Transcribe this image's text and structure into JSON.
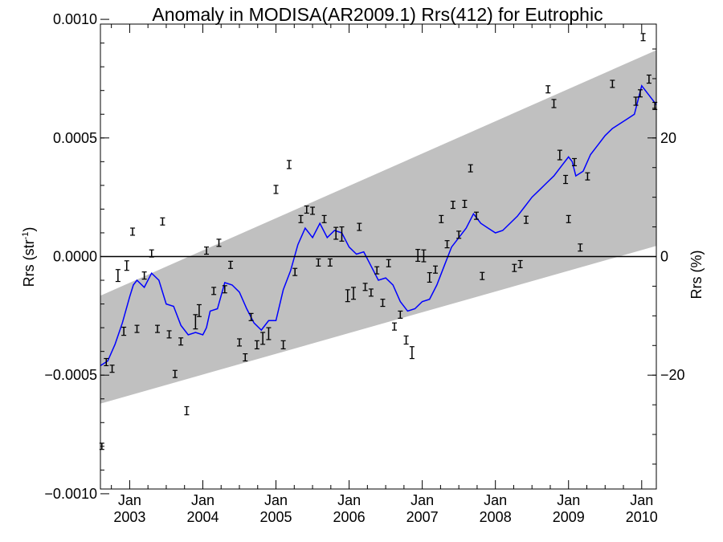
{
  "chart_data": {
    "type": "scatter",
    "title": "Anomaly in MODISA(AR2009.1) Rrs(412) for Eutrophic",
    "ylabel": "Rrs (str",
    "ylabel_sup": "-1",
    "ylabel_tail": ")",
    "y2label": "Rrs (%)",
    "xlim": [
      2002.6,
      2010.2
    ],
    "ylim": [
      -0.00098,
      0.00098
    ],
    "y2lim": [
      -39.2,
      39.2
    ],
    "grid": false,
    "zero_line": 0,
    "x_ticks": [
      {
        "x": 2003.0,
        "month": "Jan",
        "year": "2003"
      },
      {
        "x": 2004.0,
        "month": "Jan",
        "year": "2004"
      },
      {
        "x": 2005.0,
        "month": "Jan",
        "year": "2005"
      },
      {
        "x": 2006.0,
        "month": "Jan",
        "year": "2006"
      },
      {
        "x": 2007.0,
        "month": "Jan",
        "year": "2007"
      },
      {
        "x": 2008.0,
        "month": "Jan",
        "year": "2008"
      },
      {
        "x": 2009.0,
        "month": "Jan",
        "year": "2009"
      },
      {
        "x": 2010.0,
        "month": "Jan",
        "year": "2010"
      }
    ],
    "y_ticks": [
      {
        "value": 0.001,
        "label": "0.0010"
      },
      {
        "value": 0.0005,
        "label": "0.0005"
      },
      {
        "value": 0.0,
        "label": "0.0000"
      },
      {
        "value": -0.0005,
        "label": "−0.0005"
      },
      {
        "value": -0.001,
        "label": "−0.0010"
      }
    ],
    "y2_ticks": [
      {
        "value": 20,
        "label": "20"
      },
      {
        "value": 0,
        "label": "0"
      },
      {
        "value": -20,
        "label": "−20"
      }
    ],
    "confidence_band": {
      "x": [
        2002.6,
        2010.2
      ],
      "upper": [
        -0.000165,
        0.00087
      ],
      "lower": [
        -0.00062,
        4.5e-05
      ],
      "color": "#c0c0c0"
    },
    "running_mean": {
      "color": "#0000ff",
      "x": [
        2002.6,
        2002.7,
        2002.8,
        2002.9,
        2003.0,
        2003.05,
        2003.1,
        2003.2,
        2003.3,
        2003.4,
        2003.5,
        2003.6,
        2003.7,
        2003.8,
        2003.9,
        2004.0,
        2004.05,
        2004.1,
        2004.2,
        2004.3,
        2004.4,
        2004.5,
        2004.6,
        2004.7,
        2004.8,
        2004.9,
        2005.0,
        2005.1,
        2005.2,
        2005.3,
        2005.4,
        2005.5,
        2005.6,
        2005.7,
        2005.8,
        2005.9,
        2006.0,
        2006.1,
        2006.2,
        2006.3,
        2006.4,
        2006.5,
        2006.6,
        2006.7,
        2006.8,
        2006.9,
        2007.0,
        2007.1,
        2007.2,
        2007.3,
        2007.4,
        2007.5,
        2007.6,
        2007.7,
        2007.8,
        2007.9,
        2008.0,
        2008.1,
        2008.2,
        2008.3,
        2008.4,
        2008.5,
        2008.6,
        2008.7,
        2008.8,
        2008.9,
        2009.0,
        2009.05,
        2009.1,
        2009.2,
        2009.3,
        2009.4,
        2009.5,
        2009.6,
        2009.7,
        2009.8,
        2009.9,
        2010.0,
        2010.1,
        2010.2
      ],
      "y": [
        -0.00046,
        -0.00044,
        -0.00037,
        -0.00028,
        -0.00017,
        -0.00012,
        -0.0001,
        -0.00013,
        -7e-05,
        -0.0001,
        -0.0002,
        -0.00021,
        -0.00029,
        -0.00033,
        -0.00032,
        -0.00033,
        -0.0003,
        -0.00023,
        -0.00022,
        -0.00011,
        -0.00012,
        -0.00015,
        -0.00022,
        -0.00028,
        -0.00031,
        -0.00027,
        -0.00027,
        -0.00014,
        -6e-05,
        5e-05,
        0.00012,
        8e-05,
        0.00014,
        8e-05,
        0.00011,
        0.0001,
        4e-05,
        1e-05,
        2e-05,
        -4e-05,
        -0.0001,
        -9e-05,
        -0.00012,
        -0.00019,
        -0.00023,
        -0.00022,
        -0.00019,
        -0.00018,
        -0.00012,
        -4e-05,
        4e-05,
        8e-05,
        0.00012,
        0.00018,
        0.00014,
        0.00012,
        0.0001,
        0.00011,
        0.00014,
        0.00017,
        0.00021,
        0.00025,
        0.00028,
        0.00031,
        0.00034,
        0.00038,
        0.00042,
        0.0004,
        0.00034,
        0.00036,
        0.00043,
        0.00047,
        0.00051,
        0.00054,
        0.00056,
        0.00058,
        0.0006,
        0.00072,
        0.00068,
        0.00064
      ]
    },
    "series": [
      {
        "x": 2002.62,
        "y": -0.0008,
        "err": 8e-06
      },
      {
        "x": 2002.68,
        "y": -0.000445,
        "err": 1e-05
      },
      {
        "x": 2002.76,
        "y": -0.000473,
        "err": 1e-05
      },
      {
        "x": 2002.84,
        "y": -8e-05,
        "err": 2e-05
      },
      {
        "x": 2002.92,
        "y": -0.000315,
        "err": 1.2e-05
      },
      {
        "x": 2002.96,
        "y": -3.8e-05,
        "err": 1.5e-05
      },
      {
        "x": 2003.04,
        "y": 0.000105,
        "err": 1e-05
      },
      {
        "x": 2003.1,
        "y": -0.000305,
        "err": 1e-05
      },
      {
        "x": 2003.2,
        "y": -8e-05,
        "err": 1e-05
      },
      {
        "x": 2003.3,
        "y": 1.3e-05,
        "err": 1e-05
      },
      {
        "x": 2003.38,
        "y": -0.000305,
        "err": 1e-05
      },
      {
        "x": 2003.45,
        "y": 0.000148,
        "err": 1e-05
      },
      {
        "x": 2003.54,
        "y": -0.000328,
        "err": 1e-05
      },
      {
        "x": 2003.62,
        "y": -0.000495,
        "err": 1e-05
      },
      {
        "x": 2003.7,
        "y": -0.000358,
        "err": 1e-05
      },
      {
        "x": 2003.78,
        "y": -0.00065,
        "err": 1.2e-05
      },
      {
        "x": 2003.9,
        "y": -0.000275,
        "err": 2.5e-05
      },
      {
        "x": 2003.95,
        "y": -0.000228,
        "err": 2e-05
      },
      {
        "x": 2004.05,
        "y": 2.5e-05,
        "err": 1e-05
      },
      {
        "x": 2004.15,
        "y": -0.000145,
        "err": 1e-05
      },
      {
        "x": 2004.22,
        "y": 5.8e-05,
        "err": 1e-05
      },
      {
        "x": 2004.3,
        "y": -0.000138,
        "err": 1e-05
      },
      {
        "x": 2004.38,
        "y": -3.5e-05,
        "err": 1e-05
      },
      {
        "x": 2004.5,
        "y": -0.000362,
        "err": 1e-05
      },
      {
        "x": 2004.58,
        "y": -0.000425,
        "err": 1e-05
      },
      {
        "x": 2004.66,
        "y": -0.000255,
        "err": 1e-05
      },
      {
        "x": 2004.74,
        "y": -0.000372,
        "err": 1.2e-05
      },
      {
        "x": 2004.82,
        "y": -0.000345,
        "err": 2e-05
      },
      {
        "x": 2004.9,
        "y": -0.000325,
        "err": 2e-05
      },
      {
        "x": 2005.0,
        "y": 0.000283,
        "err": 1.2e-05
      },
      {
        "x": 2005.1,
        "y": -0.000372,
        "err": 1.2e-05
      },
      {
        "x": 2005.18,
        "y": 0.000388,
        "err": 1.2e-05
      },
      {
        "x": 2005.26,
        "y": -6.5e-05,
        "err": 1e-05
      },
      {
        "x": 2005.34,
        "y": 0.000158,
        "err": 1e-05
      },
      {
        "x": 2005.42,
        "y": 0.000198,
        "err": 1e-05
      },
      {
        "x": 2005.5,
        "y": 0.000193,
        "err": 1e-05
      },
      {
        "x": 2005.58,
        "y": -2.5e-05,
        "err": 1e-05
      },
      {
        "x": 2005.66,
        "y": 0.000158,
        "err": 1e-05
      },
      {
        "x": 2005.74,
        "y": -2.5e-05,
        "err": 1e-05
      },
      {
        "x": 2005.82,
        "y": 9.8e-05,
        "err": 2e-05
      },
      {
        "x": 2005.9,
        "y": 9.5e-05,
        "err": 2.5e-05
      },
      {
        "x": 2005.98,
        "y": -0.000165,
        "err": 2e-05
      },
      {
        "x": 2006.06,
        "y": -0.000155,
        "err": 2e-05
      },
      {
        "x": 2006.14,
        "y": 0.000125,
        "err": 1e-05
      },
      {
        "x": 2006.22,
        "y": -0.000128,
        "err": 1e-05
      },
      {
        "x": 2006.3,
        "y": -0.000152,
        "err": 1e-05
      },
      {
        "x": 2006.38,
        "y": -5.8e-05,
        "err": 1e-05
      },
      {
        "x": 2006.46,
        "y": -0.000195,
        "err": 1e-05
      },
      {
        "x": 2006.54,
        "y": -2.8e-05,
        "err": 1e-05
      },
      {
        "x": 2006.62,
        "y": -0.000295,
        "err": 1e-05
      },
      {
        "x": 2006.7,
        "y": -0.000245,
        "err": 1e-05
      },
      {
        "x": 2006.78,
        "y": -0.000352,
        "err": 1.2e-05
      },
      {
        "x": 2006.86,
        "y": -0.000405,
        "err": 2e-05
      },
      {
        "x": 2006.94,
        "y": 5e-06,
        "err": 2e-05
      },
      {
        "x": 2007.02,
        "y": 3e-06,
        "err": 2e-05
      },
      {
        "x": 2007.1,
        "y": -8.8e-05,
        "err": 1.5e-05
      },
      {
        "x": 2007.18,
        "y": -5.5e-05,
        "err": 1e-05
      },
      {
        "x": 2007.26,
        "y": 0.000158,
        "err": 1e-05
      },
      {
        "x": 2007.34,
        "y": 5.2e-05,
        "err": 1e-05
      },
      {
        "x": 2007.42,
        "y": 0.000218,
        "err": 1e-05
      },
      {
        "x": 2007.5,
        "y": 9.2e-05,
        "err": 1e-05
      },
      {
        "x": 2007.58,
        "y": 0.000222,
        "err": 1e-05
      },
      {
        "x": 2007.66,
        "y": 0.000372,
        "err": 1e-05
      },
      {
        "x": 2007.74,
        "y": 0.000172,
        "err": 1e-05
      },
      {
        "x": 2007.82,
        "y": -8.2e-05,
        "err": 1e-05
      },
      {
        "x": 2008.26,
        "y": -4.8e-05,
        "err": 1e-05
      },
      {
        "x": 2008.34,
        "y": -3.2e-05,
        "err": 1e-05
      },
      {
        "x": 2008.42,
        "y": 0.000155,
        "err": 1e-05
      },
      {
        "x": 2008.72,
        "y": 0.000705,
        "err": 1e-05
      },
      {
        "x": 2008.8,
        "y": 0.000645,
        "err": 1.2e-05
      },
      {
        "x": 2008.88,
        "y": 0.000428,
        "err": 1.5e-05
      },
      {
        "x": 2008.96,
        "y": 0.000325,
        "err": 1.2e-05
      },
      {
        "x": 2009.0,
        "y": 0.000158,
        "err": 1e-05
      },
      {
        "x": 2009.08,
        "y": 0.000398,
        "err": 1e-05
      },
      {
        "x": 2009.16,
        "y": 3.8e-05,
        "err": 1e-05
      },
      {
        "x": 2009.26,
        "y": 0.000338,
        "err": 1e-05
      },
      {
        "x": 2009.6,
        "y": 0.000728,
        "err": 1e-05
      },
      {
        "x": 2009.92,
        "y": 0.000655,
        "err": 1.2e-05
      },
      {
        "x": 2009.98,
        "y": 0.000688,
        "err": 1e-05
      },
      {
        "x": 2010.02,
        "y": 0.000925,
        "err": 1e-05
      },
      {
        "x": 2010.1,
        "y": 0.000748,
        "err": 1.2e-05
      },
      {
        "x": 2010.18,
        "y": 0.000635,
        "err": 1e-05
      }
    ]
  }
}
